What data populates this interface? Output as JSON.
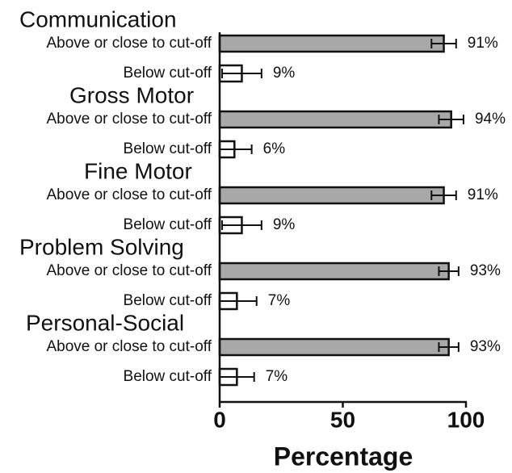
{
  "chart_data": {
    "type": "bar",
    "xlabel": "Percentage",
    "xlim": [
      0,
      100
    ],
    "xticks": [
      0,
      50,
      100
    ],
    "colors": [
      "#a8a8a8",
      "#ffffff"
    ],
    "groups": [
      {
        "name": "Communication",
        "categories": [
          "Above or close to cut-off",
          "Below cut-off"
        ],
        "values": [
          91,
          9
        ],
        "value_labels": [
          "91%",
          "9%"
        ],
        "errors": [
          5,
          8
        ]
      },
      {
        "name": "Gross Motor",
        "categories": [
          "Above or close to cut-off",
          "Below cut-off"
        ],
        "values": [
          94,
          6
        ],
        "value_labels": [
          "94%",
          "6%"
        ],
        "errors": [
          5,
          7
        ]
      },
      {
        "name": "Fine Motor",
        "categories": [
          "Above or close to cut-off",
          "Below cut-off"
        ],
        "values": [
          91,
          9
        ],
        "value_labels": [
          "91%",
          "9%"
        ],
        "errors": [
          5,
          8
        ]
      },
      {
        "name": "Problem Solving",
        "categories": [
          "Above or close to cut-off",
          "Below cut-off"
        ],
        "values": [
          93,
          7
        ],
        "value_labels": [
          "93%",
          "7%"
        ],
        "errors": [
          4,
          8
        ]
      },
      {
        "name": "Personal-Social",
        "categories": [
          "Above or close to cut-off",
          "Below cut-off"
        ],
        "values": [
          93,
          7
        ],
        "value_labels": [
          "93%",
          "7%"
        ],
        "errors": [
          4,
          7
        ]
      }
    ]
  }
}
